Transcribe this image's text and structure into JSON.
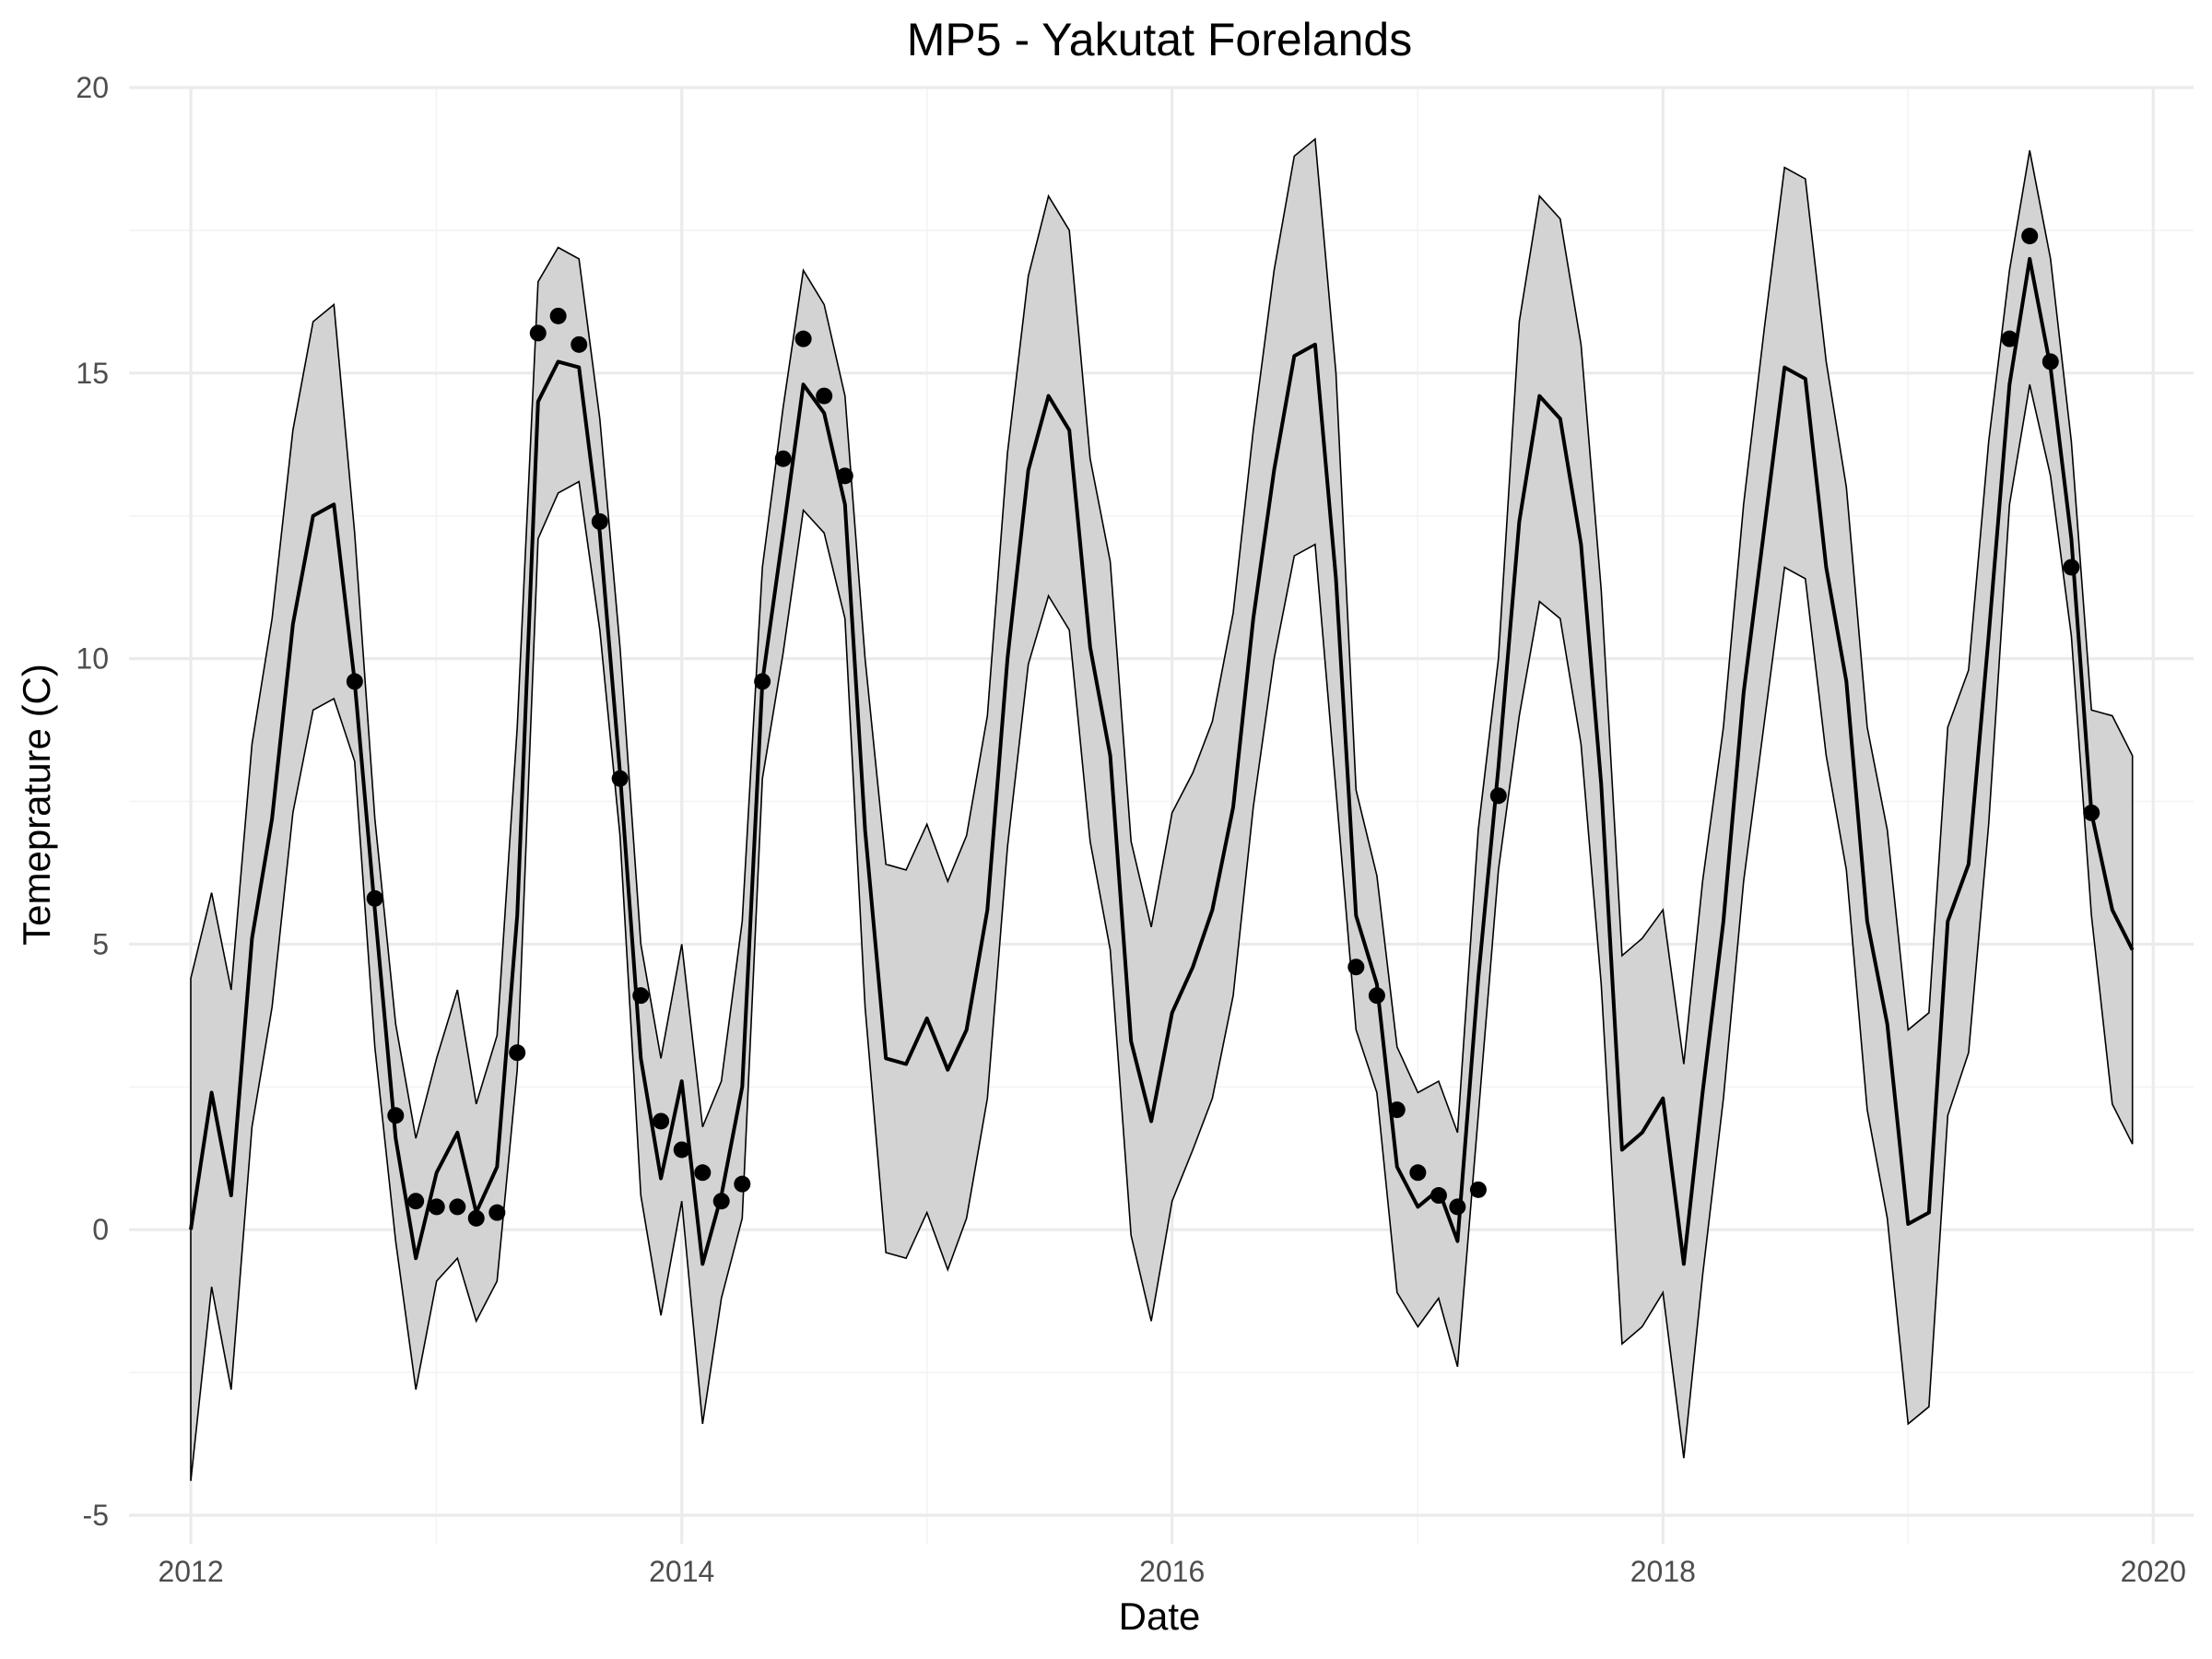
{
  "chart_data": {
    "type": "line",
    "title": "MP5 - Yakutat Forelands",
    "xlabel": "Date",
    "ylabel": "Temeprature (C)",
    "x_axis": {
      "type": "date",
      "range": [
        "2011-10-01",
        "2020-03-01"
      ],
      "ticks": [
        "2012",
        "2014",
        "2016",
        "2018",
        "2020"
      ]
    },
    "y_axis": {
      "range": [
        -5.5,
        20
      ],
      "ticks": [
        "-5",
        "0",
        "5",
        "10",
        "15",
        "20"
      ],
      "tick_values": [
        -5,
        0,
        5,
        10,
        15,
        20
      ]
    },
    "grid": true,
    "series": [
      {
        "type": "ribbon",
        "x": [
          "2012-01-01",
          "2012-02-01",
          "2012-03-01",
          "2012-04-01",
          "2012-05-01",
          "2012-06-01",
          "2012-07-01",
          "2012-08-01",
          "2012-09-01",
          "2012-10-01",
          "2012-11-01",
          "2012-12-01",
          "2013-01-01",
          "2013-02-01",
          "2013-03-01",
          "2013-04-01",
          "2013-05-01",
          "2013-06-01",
          "2013-07-01",
          "2013-08-01",
          "2013-09-01",
          "2013-10-01",
          "2013-11-01",
          "2013-12-01",
          "2014-01-01",
          "2014-02-01",
          "2014-03-01",
          "2014-04-01",
          "2014-05-01",
          "2014-06-01",
          "2014-07-01",
          "2014-08-01",
          "2014-09-01",
          "2014-10-01",
          "2014-11-01",
          "2014-12-01",
          "2015-01-01",
          "2015-02-01",
          "2015-03-01",
          "2015-04-01",
          "2015-05-01",
          "2015-06-01",
          "2015-07-01",
          "2015-08-01",
          "2015-09-01",
          "2015-10-01",
          "2015-11-01",
          "2015-12-01",
          "2016-01-01",
          "2016-02-01",
          "2016-03-01",
          "2016-04-01",
          "2016-05-01",
          "2016-06-01",
          "2016-07-01",
          "2016-08-01",
          "2016-09-01",
          "2016-10-01",
          "2016-11-01",
          "2016-12-01",
          "2017-01-01",
          "2017-02-01",
          "2017-03-01",
          "2017-04-01",
          "2017-05-01",
          "2017-06-01",
          "2017-07-01",
          "2017-08-01",
          "2017-09-01",
          "2017-10-01",
          "2017-11-01",
          "2017-12-01",
          "2018-01-01",
          "2018-02-01",
          "2018-03-01",
          "2018-04-01",
          "2018-05-01",
          "2018-06-01",
          "2018-07-01",
          "2018-08-01",
          "2018-09-01",
          "2018-10-01",
          "2018-11-01",
          "2018-12-01",
          "2019-01-01",
          "2019-02-01",
          "2019-03-01",
          "2019-04-01",
          "2019-05-01",
          "2019-06-01",
          "2019-07-01",
          "2019-08-01",
          "2019-09-01",
          "2019-10-01",
          "2019-11-01",
          "2019-12-01"
        ],
        "upper": [
          4.4,
          5.9,
          4.2,
          8.5,
          10.7,
          14.0,
          15.9,
          16.2,
          12.2,
          7.2,
          3.6,
          1.6,
          3.0,
          4.2,
          2.2,
          3.4,
          8.8,
          16.6,
          17.2,
          17.0,
          14.2,
          10.2,
          5.0,
          3.0,
          5.0,
          1.8,
          2.6,
          5.4,
          11.6,
          14.4,
          16.8,
          16.2,
          14.6,
          10.0,
          6.4,
          6.3,
          7.1,
          6.1,
          6.9,
          9.0,
          13.6,
          16.7,
          18.1,
          17.5,
          13.5,
          11.7,
          6.8,
          5.3,
          7.3,
          8.0,
          8.9,
          10.8,
          14.0,
          16.8,
          18.8,
          19.1,
          15.0,
          7.7,
          6.2,
          3.2,
          2.4,
          2.6,
          1.7,
          7.0,
          10.0,
          15.9,
          18.1,
          17.7,
          15.5,
          11.2,
          4.8,
          5.1,
          5.6,
          2.9,
          6.1,
          8.8,
          12.7,
          15.8,
          18.6,
          18.4,
          15.2,
          13.0,
          8.8,
          7.0,
          3.5,
          3.8,
          8.8,
          9.8,
          13.8,
          16.8,
          18.9,
          17.0,
          13.8,
          9.1,
          9.0,
          8.3
        ],
        "lower": [
          -4.4,
          -1.0,
          -2.8,
          1.8,
          3.9,
          7.3,
          9.1,
          9.3,
          8.2,
          3.2,
          -0.2,
          -2.8,
          -0.9,
          -0.5,
          -1.6,
          -0.9,
          2.8,
          12.1,
          12.9,
          13.1,
          10.5,
          6.9,
          0.6,
          -1.5,
          0.5,
          -3.4,
          -1.2,
          0.2,
          7.9,
          10.1,
          12.6,
          12.2,
          10.7,
          3.9,
          -0.4,
          -0.5,
          0.3,
          -0.7,
          0.2,
          2.3,
          6.7,
          9.9,
          11.1,
          10.5,
          6.8,
          4.9,
          -0.1,
          -1.6,
          0.5,
          1.4,
          2.3,
          4.1,
          7.4,
          10.0,
          11.8,
          12.0,
          7.7,
          3.5,
          2.4,
          -1.1,
          -1.7,
          -1.2,
          -2.4,
          2.0,
          6.3,
          9.0,
          11.0,
          10.7,
          8.5,
          4.3,
          -2.0,
          -1.7,
          -1.1,
          -4.0,
          -0.8,
          2.3,
          6.1,
          8.9,
          11.6,
          11.4,
          8.3,
          6.3,
          2.1,
          0.2,
          -3.4,
          -3.1,
          2.0,
          3.1,
          7.1,
          12.7,
          14.8,
          13.2,
          10.4,
          5.5,
          2.2,
          1.5
        ]
      },
      {
        "type": "line",
        "y": [
          0.0,
          2.4,
          0.6,
          5.1,
          7.2,
          10.6,
          12.5,
          12.7,
          9.6,
          5.6,
          1.6,
          -0.5,
          1.0,
          1.7,
          0.3,
          1.1,
          5.5,
          14.5,
          15.2,
          15.1,
          12.2,
          8.0,
          3.0,
          0.9,
          2.6,
          -0.6,
          0.6,
          2.5,
          9.6,
          12.2,
          14.8,
          14.3,
          12.7,
          7.0,
          3.0,
          2.9,
          3.7,
          2.8,
          3.5,
          5.6,
          10.0,
          13.3,
          14.6,
          14.0,
          10.2,
          8.3,
          3.3,
          1.9,
          3.8,
          4.6,
          5.6,
          7.4,
          10.7,
          13.3,
          15.3,
          15.5,
          11.4,
          5.5,
          4.3,
          1.1,
          0.4,
          0.7,
          -0.2,
          4.4,
          8.1,
          12.4,
          14.6,
          14.2,
          12.0,
          7.8,
          1.4,
          1.7,
          2.3,
          -0.6,
          2.4,
          5.4,
          9.4,
          12.3,
          15.1,
          14.9,
          11.6,
          9.6,
          5.4,
          3.6,
          0.1,
          0.3,
          5.4,
          6.4,
          10.4,
          14.8,
          17.0,
          15.1,
          12.1,
          7.3,
          5.6,
          4.9
        ]
      },
      {
        "type": "scatter",
        "x": [
          "2012-09-01",
          "2012-10-01",
          "2012-11-01",
          "2012-12-01",
          "2013-01-01",
          "2013-02-01",
          "2013-03-01",
          "2013-04-01",
          "2013-05-01",
          "2013-06-01",
          "2013-07-01",
          "2013-08-01",
          "2013-09-01",
          "2013-10-01",
          "2013-11-01",
          "2013-12-01",
          "2014-01-01",
          "2014-02-01",
          "2014-03-01",
          "2014-04-01",
          "2014-05-01",
          "2014-06-01",
          "2014-07-01",
          "2014-08-01",
          "2014-09-01",
          "2016-10-01",
          "2016-11-01",
          "2016-12-01",
          "2017-01-01",
          "2017-02-01",
          "2017-03-01",
          "2017-04-01",
          "2017-05-01",
          "2019-06-01",
          "2019-07-01",
          "2019-08-01",
          "2019-09-01",
          "2019-10-01"
        ],
        "y": [
          9.6,
          5.8,
          2.0,
          0.5,
          0.4,
          0.4,
          0.2,
          0.3,
          3.1,
          15.7,
          16.0,
          15.5,
          12.4,
          7.9,
          4.1,
          1.9,
          1.4,
          1.0,
          0.5,
          0.8,
          9.6,
          13.5,
          15.6,
          14.6,
          13.2,
          4.6,
          4.1,
          2.1,
          1.0,
          0.6,
          0.4,
          0.7,
          7.6,
          15.6,
          17.4,
          15.2,
          11.6,
          7.3
        ]
      }
    ]
  }
}
